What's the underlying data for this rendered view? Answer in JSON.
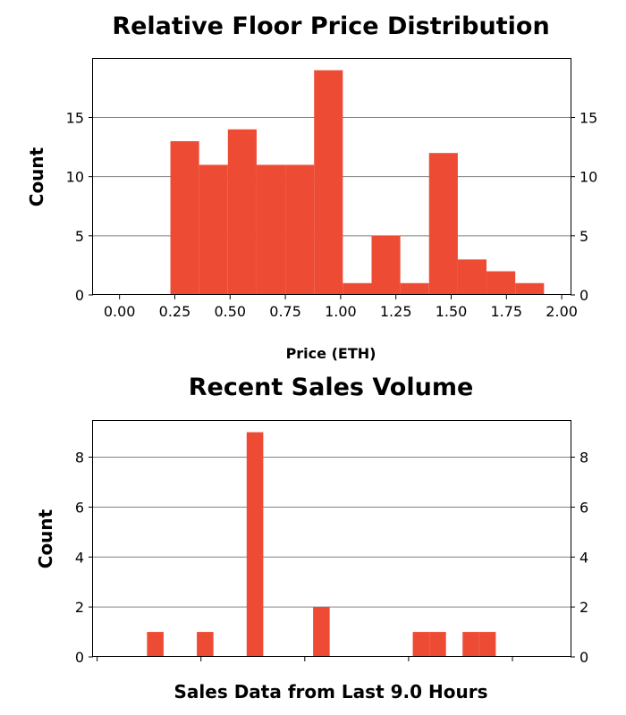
{
  "chart_data": [
    {
      "type": "bar",
      "title": "Relative Floor Price Distribution",
      "xlabel": "Price (ETH)",
      "ylabel": "Count",
      "xlim": [
        -0.12,
        2.04
      ],
      "ylim": [
        0,
        19.95
      ],
      "x_ticks": [
        "0.00",
        "0.25",
        "0.50",
        "0.75",
        "1.00",
        "1.25",
        "1.50",
        "1.75",
        "2.00"
      ],
      "y_ticks": [
        "0",
        "5",
        "10",
        "15"
      ],
      "grid": "horizontal",
      "bar_color": "#EE4B35",
      "bins": [
        {
          "x0": 0.23,
          "x1": 0.36,
          "count": 13
        },
        {
          "x0": 0.36,
          "x1": 0.49,
          "count": 11
        },
        {
          "x0": 0.49,
          "x1": 0.62,
          "count": 14
        },
        {
          "x0": 0.62,
          "x1": 0.75,
          "count": 11
        },
        {
          "x0": 0.75,
          "x1": 0.88,
          "count": 11
        },
        {
          "x0": 0.88,
          "x1": 1.01,
          "count": 19
        },
        {
          "x0": 1.01,
          "x1": 1.14,
          "count": 1
        },
        {
          "x0": 1.14,
          "x1": 1.27,
          "count": 5
        },
        {
          "x0": 1.27,
          "x1": 1.4,
          "count": 1
        },
        {
          "x0": 1.4,
          "x1": 1.53,
          "count": 12
        },
        {
          "x0": 1.53,
          "x1": 1.66,
          "count": 3
        },
        {
          "x0": 1.66,
          "x1": 1.79,
          "count": 2
        },
        {
          "x0": 1.79,
          "x1": 1.92,
          "count": 1
        }
      ]
    },
    {
      "type": "bar",
      "title": "Recent Sales Volume",
      "xlabel": "Sales Data from Last 9.0 Hours",
      "ylabel": "Count",
      "xlim": [
        -0.1,
        11.4
      ],
      "ylim": [
        0,
        9.45
      ],
      "x_ticks": [
        "",
        "",
        "",
        "",
        ""
      ],
      "x_tick_values": [
        0,
        2.5,
        5,
        7.5,
        10
      ],
      "y_ticks": [
        "0",
        "2",
        "4",
        "6",
        "8"
      ],
      "grid": "horizontal",
      "bar_color": "#EE4B35",
      "bin_width": 0.4,
      "bins": [
        {
          "x0": 1.2,
          "count": 1
        },
        {
          "x0": 2.4,
          "count": 1
        },
        {
          "x0": 3.6,
          "count": 9
        },
        {
          "x0": 5.2,
          "count": 2
        },
        {
          "x0": 7.6,
          "count": 1
        },
        {
          "x0": 8.0,
          "count": 1
        },
        {
          "x0": 8.8,
          "count": 1
        },
        {
          "x0": 9.2,
          "count": 1
        }
      ]
    }
  ]
}
